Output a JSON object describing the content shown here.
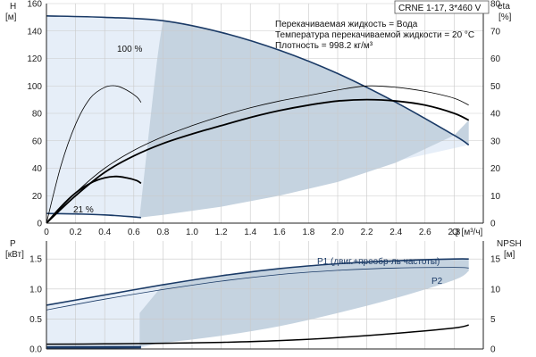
{
  "chart_data": [
    {
      "type": "line",
      "panel": "head-efficiency",
      "title": "CRNE 1-17, 3*460 V",
      "info_lines": [
        "Перекачиваемая жидкость = Вода",
        "Температура перекачиваемой жидкости = 20 °C",
        "Плотность = 998.2 кг/м³"
      ],
      "xlabel": "Q [м³/ч]",
      "ylabel_left": "H",
      "ylabel_left_unit": "[м]",
      "ylabel_right": "eta",
      "ylabel_right_unit": "[%]",
      "xlim": [
        0,
        3.0
      ],
      "ylim_left": [
        0,
        160
      ],
      "ylim_right": [
        0,
        80
      ],
      "x_ticks": [
        "0",
        "0.2",
        "0.4",
        "0.6",
        "0.8",
        "1.0",
        "1.2",
        "1.4",
        "1.6",
        "1.8",
        "2.0",
        "2.2",
        "2.4",
        "2.6",
        "2.8"
      ],
      "y_ticks_left": [
        "0",
        "20",
        "40",
        "60",
        "80",
        "100",
        "120",
        "140",
        "160"
      ],
      "y_ticks_right": [
        "0",
        "10",
        "20",
        "30",
        "40",
        "50",
        "60",
        "70",
        "80"
      ],
      "grid": true,
      "curve_labels": [
        "100 %",
        "21 %"
      ],
      "series": [
        {
          "axis": "left",
          "style": "head-max",
          "x": [
            0,
            0.4,
            0.8,
            1.2,
            1.6,
            2.0,
            2.4,
            2.8,
            2.9
          ],
          "y": [
            151,
            150,
            147.5,
            139,
            126,
            109,
            88,
            64,
            57
          ]
        },
        {
          "axis": "left",
          "style": "head-min",
          "x": [
            0,
            0.2,
            0.4,
            0.6,
            0.65
          ],
          "y": [
            7,
            6.7,
            6,
            4.5,
            4
          ]
        },
        {
          "axis": "right",
          "style": "eta-max",
          "x": [
            0,
            0.2,
            0.4,
            0.6,
            0.8,
            1.0,
            1.2,
            1.4,
            1.6,
            1.8,
            2.0,
            2.2,
            2.4,
            2.6,
            2.8,
            2.9
          ],
          "y": [
            0,
            10,
            18.5,
            24.5,
            29,
            32.5,
            35.5,
            38.5,
            41,
            43,
            44.5,
            45,
            44.5,
            43,
            40,
            37.5
          ]
        },
        {
          "axis": "right",
          "style": "eta-ref",
          "x": [
            0,
            0.2,
            0.4,
            0.6,
            0.8,
            1.0,
            1.2,
            1.4,
            1.6,
            1.8,
            2.0,
            2.2,
            2.4,
            2.6,
            2.8,
            2.9
          ],
          "y": [
            0,
            11,
            20,
            26.5,
            31.5,
            35.5,
            39,
            42,
            44.5,
            46.5,
            48.5,
            50,
            49.5,
            48,
            45.5,
            43
          ]
        },
        {
          "axis": "right",
          "style": "eta-thin-small",
          "x": [
            0,
            0.1,
            0.2,
            0.3,
            0.4,
            0.48,
            0.55,
            0.62,
            0.65
          ],
          "y": [
            0,
            21,
            36,
            45.5,
            49.5,
            50,
            48.5,
            46,
            44
          ]
        },
        {
          "axis": "right",
          "style": "eta-bold-small",
          "x": [
            0,
            0.1,
            0.2,
            0.3,
            0.4,
            0.48,
            0.55,
            0.62,
            0.65
          ],
          "y": [
            0,
            6,
            11,
            14.5,
            16.5,
            17,
            16.5,
            15.5,
            14.5
          ]
        }
      ],
      "operating_area": {
        "lower_boundary": {
          "x": [
            0.64,
            0.8,
            1.2,
            1.6,
            2.0,
            2.4,
            2.8,
            2.9
          ],
          "y": [
            4,
            6,
            12,
            20,
            30,
            44,
            64,
            75
          ]
        },
        "left_boundary": {
          "x": [
            0.64,
            0.75,
            0.8
          ],
          "y": [
            4,
            110,
            147.5
          ]
        }
      }
    },
    {
      "type": "line",
      "panel": "power-npsh",
      "xlabel": "",
      "ylabel_left": "P",
      "ylabel_left_unit": "[кВт]",
      "ylabel_right": "NPSH",
      "ylabel_right_unit": "[м]",
      "xlim": [
        0,
        3.0
      ],
      "ylim_left": [
        0,
        1.8
      ],
      "ylim_right": [
        0,
        18
      ],
      "y_ticks_left": [
        "0.0",
        "0.5",
        "1.0",
        "1.5"
      ],
      "y_ticks_right": [
        "0",
        "5",
        "10",
        "15"
      ],
      "grid": true,
      "series_labels": [
        "P1 (двиг.+преобр-ль частоты)",
        "P2"
      ],
      "series": [
        {
          "axis": "left",
          "style": "p1",
          "x": [
            0,
            0.4,
            0.8,
            1.2,
            1.6,
            2.0,
            2.4,
            2.8,
            2.9
          ],
          "y": [
            0.73,
            0.9,
            1.07,
            1.22,
            1.34,
            1.42,
            1.47,
            1.5,
            1.5
          ]
        },
        {
          "axis": "left",
          "style": "p2",
          "x": [
            0,
            0.4,
            0.8,
            1.2,
            1.6,
            2.0,
            2.4,
            2.8,
            2.9
          ],
          "y": [
            0.65,
            0.83,
            0.99,
            1.13,
            1.24,
            1.31,
            1.35,
            1.36,
            1.35
          ]
        },
        {
          "axis": "left",
          "style": "p-min",
          "x": [
            0,
            0.3,
            0.65
          ],
          "y": [
            0.035,
            0.038,
            0.04
          ]
        },
        {
          "axis": "left",
          "style": "p-min2",
          "x": [
            0,
            0.3,
            0.65
          ],
          "y": [
            0.02,
            0.022,
            0.025
          ]
        },
        {
          "axis": "right",
          "style": "npsh",
          "x": [
            0,
            0.4,
            0.8,
            1.2,
            1.6,
            2.0,
            2.4,
            2.8,
            2.9
          ],
          "y": [
            0.8,
            0.85,
            0.95,
            1.1,
            1.4,
            1.9,
            2.6,
            3.5,
            4
          ]
        }
      ],
      "operating_area": {
        "lower_boundary": {
          "x": [
            0.64,
            0.8,
            1.2,
            1.6,
            2.0,
            2.4,
            2.8,
            2.9
          ],
          "y": [
            0.04,
            0.1,
            0.22,
            0.38,
            0.6,
            0.85,
            1.15,
            1.3
          ]
        },
        "upper_boundary": {
          "x": [
            0.64,
            0.8,
            1.2,
            1.6,
            2.0,
            2.4,
            2.8,
            2.9
          ],
          "y": [
            0.6,
            1.07,
            1.22,
            1.34,
            1.42,
            1.47,
            1.5,
            1.5
          ]
        }
      }
    }
  ],
  "colors": {
    "area_fill": "#c5d3e0",
    "area_light": "#e6eef8",
    "curve_blue": "#1a3a66",
    "curve_black": "#000000",
    "label_blue": "#1a3a66"
  }
}
